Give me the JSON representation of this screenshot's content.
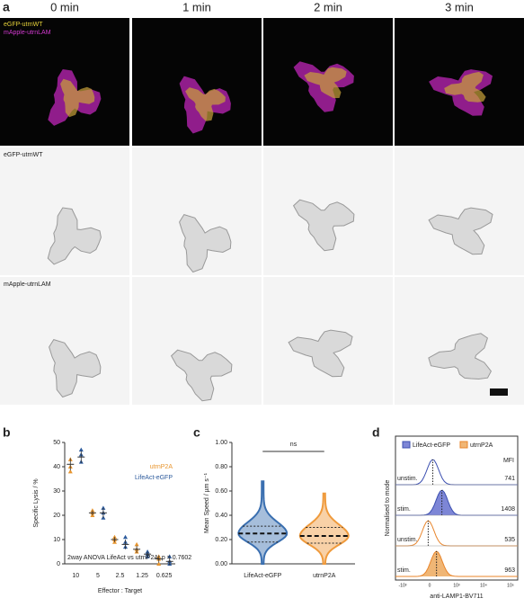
{
  "panel_a": {
    "label": "a",
    "times": [
      "0 min",
      "1 min",
      "2 min",
      "3 min"
    ],
    "overlay_legend": [
      "eGFP-utrnWT",
      "mApple-utrnLAM"
    ],
    "row_labels": [
      "eGFP-utrnWT",
      "mApple-utrnLAM"
    ]
  },
  "chart_data": [
    {
      "type": "strip",
      "panel_label": "b",
      "ylabel": "Specific Lysis / %",
      "xlabel": "Effector : Target",
      "annotation": "2way ANOVA LifeAct vs utrnP2A: p = 0.7602",
      "categories": [
        "10",
        "5",
        "2.5",
        "1.25",
        "0.625"
      ],
      "ylim": [
        0,
        50
      ],
      "yticks": [
        0,
        10,
        20,
        30,
        40,
        50
      ],
      "series": [
        {
          "name": "utrnP2A",
          "color": "#e8952e",
          "values": [
            [
              38,
              40,
              43
            ],
            [
              20,
              21,
              22
            ],
            [
              9,
              10,
              11
            ],
            [
              5,
              6,
              8
            ],
            [
              0,
              2,
              3
            ]
          ],
          "means": [
            41,
            21,
            10,
            6,
            2
          ],
          "sd": [
            2.5,
            1,
            1,
            1.5,
            1.5
          ]
        },
        {
          "name": "LifeAct-eGFP",
          "color": "#2c5a9c",
          "values": [
            [
              42,
              45,
              47
            ],
            [
              19,
              21,
              23
            ],
            [
              7,
              9,
              11
            ],
            [
              3,
              4,
              5
            ],
            [
              0,
              1,
              3
            ]
          ],
          "means": [
            44,
            21,
            8,
            4,
            1
          ],
          "sd": [
            2.5,
            2,
            2,
            1,
            1.5
          ]
        }
      ]
    },
    {
      "type": "violin",
      "panel_label": "c",
      "ylabel": "Mean Speed / µm s⁻¹",
      "annotation": "ns",
      "categories": [
        "LifeAct-eGFP",
        "utrnP2A"
      ],
      "colors": [
        "#3a6fb0",
        "#ef9a3c"
      ],
      "ylim": [
        0,
        1
      ],
      "yticks": [
        {
          "value": 0,
          "label": "0.00"
        },
        {
          "value": 0.2,
          "label": "0.20"
        },
        {
          "value": 0.4,
          "label": "0.40"
        },
        {
          "value": 0.6,
          "label": "0.60"
        },
        {
          "value": 0.8,
          "label": "0.80"
        },
        {
          "value": 1,
          "label": "1.00"
        }
      ],
      "min": [
        0,
        0
      ],
      "q1": [
        0.18,
        0.17
      ],
      "median": [
        0.25,
        0.23
      ],
      "q3": [
        0.31,
        0.3
      ],
      "max": [
        0.68,
        0.58
      ]
    },
    {
      "type": "flow",
      "panel_label": "d",
      "xlabel": "anti-LAMP1-BV711",
      "ylabel": "Normalised to mode",
      "mfi_header": "MFI",
      "legend": [
        {
          "name": "LifeAct-eGFP",
          "color": "#7d86d6",
          "edge": "#3b4fb0"
        },
        {
          "name": "utrnP2A",
          "color": "#f0b675",
          "edge": "#e8842a"
        }
      ],
      "rows": [
        {
          "label": "unstim.",
          "series": 0,
          "mfi": 741
        },
        {
          "label": "stim.",
          "series": 0,
          "mfi": 1408
        },
        {
          "label": "unstim.",
          "series": 1,
          "mfi": 535
        },
        {
          "label": "stim.",
          "series": 1,
          "mfi": 963
        }
      ],
      "xtick_labels": [
        "-10³",
        "0",
        "10³",
        "10⁴",
        "10⁵"
      ]
    }
  ]
}
